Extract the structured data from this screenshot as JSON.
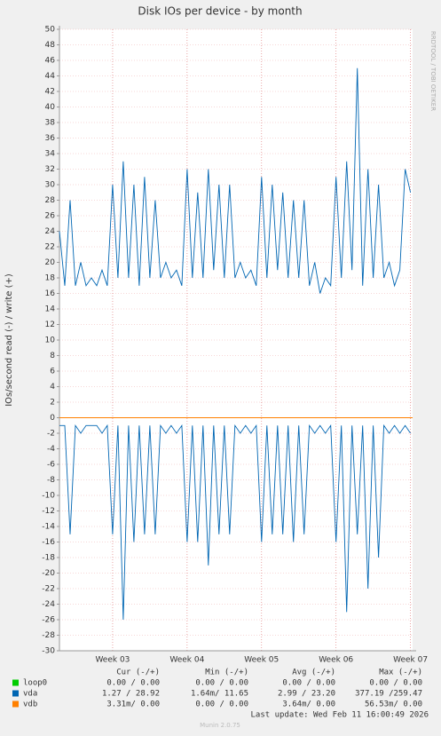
{
  "chart_data": {
    "type": "line",
    "title": "Disk IOs per device - by month",
    "y_label": "IOs/second read (-) / write (+)",
    "side_label": "RRDTOOL / TOBI OETIKER",
    "xlim": [
      0,
      33.2
    ],
    "xticks": [
      {
        "value": 5,
        "label": "Week 03"
      },
      {
        "value": 12,
        "label": "Week 04"
      },
      {
        "value": 19,
        "label": "Week 05"
      },
      {
        "value": 26,
        "label": "Week 06"
      },
      {
        "value": 33,
        "label": "Week 07"
      }
    ],
    "ylim": [
      -30,
      50
    ],
    "yticks": [
      -30,
      -28,
      -26,
      -24,
      -22,
      -20,
      -18,
      -16,
      -14,
      -12,
      -10,
      -8,
      -6,
      -4,
      -2,
      0,
      2,
      4,
      6,
      8,
      10,
      12,
      14,
      16,
      18,
      20,
      22,
      24,
      26,
      28,
      30,
      32,
      34,
      36,
      38,
      40,
      42,
      44,
      46,
      48,
      50
    ],
    "grid": true,
    "legend_headers": [
      "Cur (-/+)",
      "Min (-/+)",
      "Avg (-/+)",
      "Max (-/+)"
    ],
    "series": [
      {
        "name": "loop0",
        "color": "#00cc00",
        "x": [
          0,
          33.2
        ],
        "write": [
          0,
          0
        ],
        "read": [
          0,
          0
        ],
        "stats": [
          "0.00 /  0.00",
          "0.00 /  0.00",
          "0.00 /  0.00",
          "0.00 /  0.00"
        ]
      },
      {
        "name": "vda",
        "color": "#0066b3",
        "x": [
          0,
          0.5,
          1,
          1.5,
          2,
          2.5,
          3,
          3.5,
          4,
          4.5,
          5,
          5.5,
          6,
          6.5,
          7,
          7.5,
          8,
          8.5,
          9,
          9.5,
          10,
          10.5,
          11,
          11.5,
          12,
          12.5,
          13,
          13.5,
          14,
          14.5,
          15,
          15.5,
          16,
          16.5,
          17,
          17.5,
          18,
          18.5,
          19,
          19.5,
          20,
          20.5,
          21,
          21.5,
          22,
          22.5,
          23,
          23.5,
          24,
          24.5,
          25,
          25.5,
          26,
          26.5,
          27,
          27.5,
          28,
          28.5,
          29,
          29.5,
          30,
          30.5,
          31,
          31.5,
          32,
          32.5,
          33
        ],
        "write": [
          24,
          17,
          28,
          17,
          20,
          17,
          18,
          17,
          19,
          17,
          30,
          18,
          33,
          18,
          30,
          17,
          31,
          18,
          28,
          18,
          20,
          18,
          19,
          17,
          32,
          18,
          29,
          18,
          32,
          19,
          30,
          18,
          30,
          18,
          20,
          18,
          19,
          17,
          31,
          18,
          30,
          19,
          29,
          18,
          28,
          18,
          28,
          17,
          20,
          16,
          18,
          17,
          31,
          18,
          33,
          19,
          45,
          17,
          32,
          18,
          30,
          18,
          20,
          17,
          19,
          32,
          29
        ],
        "read": [
          -1,
          -1,
          -15,
          -1,
          -2,
          -1,
          -1,
          -1,
          -2,
          -1,
          -15,
          -1,
          -26,
          -1,
          -16,
          -1,
          -15,
          -1,
          -15,
          -1,
          -2,
          -1,
          -2,
          -1,
          -16,
          -1,
          -16,
          -1,
          -19,
          -1,
          -15,
          -1,
          -15,
          -1,
          -2,
          -1,
          -2,
          -1,
          -16,
          -1,
          -15,
          -1,
          -15,
          -1,
          -16,
          -1,
          -15,
          -1,
          -2,
          -1,
          -2,
          -1,
          -16,
          -1,
          -25,
          -1,
          -15,
          -1,
          -22,
          -1,
          -18,
          -1,
          -2,
          -1,
          -2,
          -1,
          -2
        ],
        "stats": [
          "1.27 / 28.92",
          "1.64m/ 11.65",
          "2.99 / 23.20",
          "377.19 /259.47"
        ]
      },
      {
        "name": "vdb",
        "color": "#ff8000",
        "x": [
          0,
          33.2
        ],
        "write": [
          0,
          0
        ],
        "read": [
          0,
          0
        ],
        "stats": [
          "3.31m/  0.00",
          "0.00 /  0.00",
          "3.64m/  0.00",
          "56.53m/  0.00"
        ]
      }
    ],
    "last_update": "Last update: Wed Feb 11 16:00:49 2026",
    "footer": "Munin 2.0.75"
  }
}
